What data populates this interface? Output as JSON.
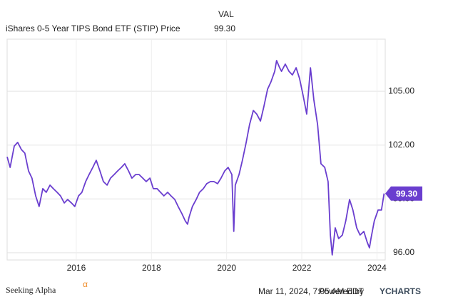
{
  "header": {
    "column": "VAL",
    "name": "iShares 0-5 Year TIPS Bond ETF (STIP) Price",
    "value": "99.30"
  },
  "footer": {
    "logo": "Seeking Alpha",
    "logo_mark": "α",
    "timestamp": "Mar 11, 2024, 7:05 AM EDT",
    "powered_by": "Powered by",
    "brand": "YCHARTS"
  },
  "chart_data": {
    "type": "line",
    "color": "#6a3ecf",
    "grid": true,
    "xlim": [
      2014.16,
      2024.22
    ],
    "xticks": [
      2016,
      2018,
      2020,
      2022,
      2024
    ],
    "ylim": [
      95.6,
      107.9
    ],
    "yticks": [
      {
        "value": 96,
        "label": "96.00"
      },
      {
        "value": 99,
        "label": "99.00"
      },
      {
        "value": 102,
        "label": "102.00"
      },
      {
        "value": 105,
        "label": "105.00"
      }
    ],
    "series": [
      {
        "name": "iShares 0-5 Year TIPS Bond ETF (STIP) Price",
        "x": [
          2014.16,
          2014.24,
          2014.35,
          2014.44,
          2014.54,
          2014.63,
          2014.73,
          2014.82,
          2014.92,
          2015.01,
          2015.11,
          2015.2,
          2015.3,
          2015.39,
          2015.49,
          2015.58,
          2015.68,
          2015.77,
          2015.87,
          2015.96,
          2016.06,
          2016.15,
          2016.25,
          2016.34,
          2016.44,
          2016.53,
          2016.63,
          2016.72,
          2016.82,
          2016.91,
          2017.01,
          2017.1,
          2017.2,
          2017.29,
          2017.39,
          2017.48,
          2017.58,
          2017.67,
          2017.77,
          2017.86,
          2017.96,
          2018.05,
          2018.15,
          2018.24,
          2018.33,
          2018.43,
          2018.52,
          2018.62,
          2018.71,
          2018.81,
          2018.9,
          2018.96,
          2019.0,
          2019.09,
          2019.19,
          2019.28,
          2019.38,
          2019.47,
          2019.57,
          2019.66,
          2019.76,
          2019.85,
          2019.95,
          2020.04,
          2020.14,
          2020.19,
          2020.23,
          2020.33,
          2020.42,
          2020.52,
          2020.61,
          2020.71,
          2020.8,
          2020.9,
          2020.99,
          2021.09,
          2021.18,
          2021.28,
          2021.33,
          2021.41,
          2021.46,
          2021.56,
          2021.66,
          2021.75,
          2021.85,
          2021.94,
          2022.04,
          2022.13,
          2022.23,
          2022.32,
          2022.42,
          2022.51,
          2022.61,
          2022.7,
          2022.76,
          2022.81,
          2022.89,
          2022.98,
          2023.08,
          2023.17,
          2023.27,
          2023.36,
          2023.46,
          2023.55,
          2023.65,
          2023.74,
          2023.8,
          2023.84,
          2023.93,
          2024.03,
          2024.12,
          2024.19
        ],
        "values": [
          101.35,
          100.76,
          101.95,
          102.15,
          101.75,
          101.55,
          100.56,
          100.16,
          99.17,
          98.58,
          99.57,
          99.37,
          99.77,
          99.57,
          99.37,
          99.17,
          98.78,
          98.97,
          98.78,
          98.58,
          99.17,
          99.37,
          99.97,
          100.36,
          100.76,
          101.15,
          100.56,
          99.97,
          99.77,
          100.16,
          100.36,
          100.56,
          100.76,
          100.96,
          100.56,
          100.16,
          100.36,
          100.36,
          100.16,
          99.97,
          100.16,
          99.57,
          99.57,
          99.37,
          99.17,
          99.37,
          99.17,
          98.97,
          98.58,
          98.18,
          97.78,
          97.59,
          97.98,
          98.58,
          98.97,
          99.37,
          99.57,
          99.85,
          99.97,
          99.97,
          99.85,
          100.16,
          100.56,
          100.76,
          100.36,
          97.19,
          99.77,
          100.36,
          101.15,
          102.15,
          103.14,
          103.93,
          103.73,
          103.34,
          104.13,
          105.12,
          105.52,
          106.11,
          106.71,
          106.31,
          106.11,
          106.51,
          106.11,
          105.91,
          106.31,
          105.71,
          104.72,
          103.73,
          106.31,
          104.53,
          103.14,
          100.96,
          100.76,
          99.97,
          96.99,
          95.88,
          97.39,
          96.79,
          96.99,
          97.78,
          98.97,
          98.38,
          97.39,
          96.99,
          97.19,
          96.59,
          96.28,
          96.79,
          97.78,
          98.38,
          98.38,
          99.3
        ]
      }
    ]
  }
}
